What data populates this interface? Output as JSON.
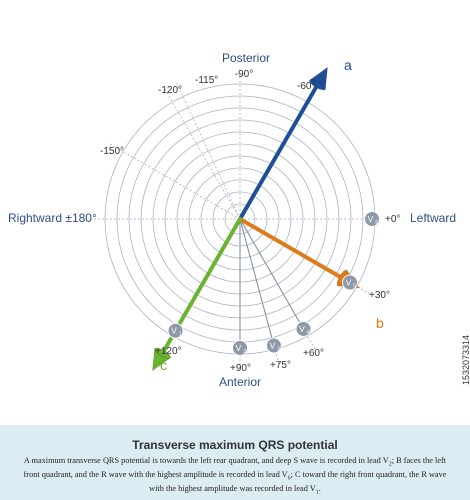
{
  "labels": {
    "posterior": "Posterior",
    "anterior": "Anterior",
    "rightward": "Rightward ±180°",
    "leftward": "Leftward"
  },
  "angles": {
    "m90": "-90°",
    "m60": "-60°",
    "m115": "-115°",
    "m120": "-120°",
    "m150": "-150°",
    "p0": "+0°",
    "p30": "+30°",
    "p60": "+60°",
    "p75": "+75°",
    "p90": "+90°",
    "p120": "+120°"
  },
  "vectors": [
    {
      "name": "a",
      "angle_deg": -60,
      "color": "#1f4e99"
    },
    {
      "name": "b",
      "angle_deg": 30,
      "color": "#e07b1a"
    },
    {
      "name": "c",
      "angle_deg": 120,
      "color": "#6ab42d"
    }
  ],
  "leads": [
    {
      "label": "V",
      "sub": "6",
      "angle_deg": 0
    },
    {
      "label": "V",
      "sub": "5",
      "angle_deg": 30
    },
    {
      "label": "V",
      "sub": "4",
      "angle_deg": 60
    },
    {
      "label": "V",
      "sub": "3",
      "angle_deg": 75
    },
    {
      "label": "V",
      "sub": "2",
      "angle_deg": 90
    },
    {
      "label": "V",
      "sub": "1",
      "angle_deg": 120
    }
  ],
  "caption": {
    "title": "Transverse maximum QRS potential",
    "p1": "A maximum transverse QRS potential is towards the left rear quadrant, and deep S wave is recorded in lead V",
    "s1": "2",
    "p2": "; B faces the left front quadrant, and the R wave with the highest amplitude is recorded in lead V",
    "s2": "6",
    "p3": "; C toward the right front quadrant, the R wave with the highest amplitude was recorded in lead V",
    "s3": "1",
    "p4": "."
  },
  "stock_id": "1532073314",
  "colors": {
    "grid": "#a9b4c4",
    "vector_a": "#1f4e99",
    "vector_b": "#e07b1a",
    "vector_c": "#6ab42d",
    "lead_badge": "#8d98a8",
    "label_blue": "#2d4f86",
    "caption_bg": "#dcecf3"
  }
}
